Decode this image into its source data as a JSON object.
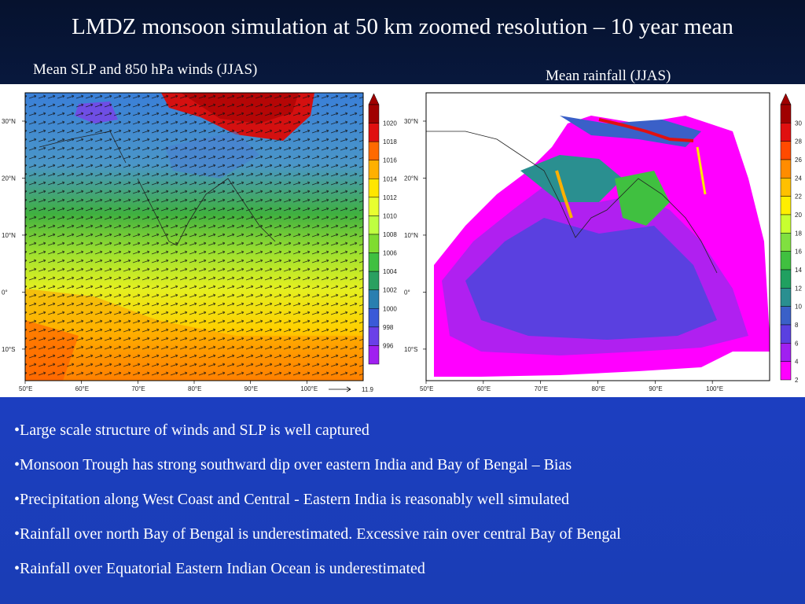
{
  "title": "LMDZ monsoon simulation at 50 km zoomed resolution – 10 year mean",
  "left_panel": {
    "subtitle": "Mean SLP and 850 hPa winds (JJAS)",
    "lat_labels": [
      "30°N",
      "20°N",
      "10°N",
      "0°",
      "10°S"
    ],
    "lon_labels": [
      "50°E",
      "60°E",
      "70°E",
      "80°E",
      "90°E",
      "100°E"
    ],
    "colorbar_labels": [
      "1020",
      "1018",
      "1016",
      "1014",
      "1012",
      "1010",
      "1008",
      "1006",
      "1004",
      "1002",
      "1000",
      "998",
      "996"
    ],
    "colorbar_colors": [
      "#a00000",
      "#e01010",
      "#ff6a00",
      "#ffb000",
      "#ffe600",
      "#e8ff30",
      "#bfff40",
      "#7fdc30",
      "#3fc040",
      "#2aa060",
      "#2a7fb0",
      "#3a5ad8",
      "#6a40e8",
      "#a020f0"
    ],
    "vector_ref": "11.9"
  },
  "right_panel": {
    "subtitle": "Mean rainfall (JJAS)",
    "lat_labels": [
      "30°N",
      "20°N",
      "10°N",
      "0°",
      "10°S"
    ],
    "lon_labels": [
      "50°E",
      "60°E",
      "70°E",
      "80°E",
      "90°E",
      "100°E"
    ],
    "colorbar_labels": [
      "30",
      "28",
      "26",
      "24",
      "22",
      "20",
      "18",
      "16",
      "14",
      "12",
      "10",
      "8",
      "6",
      "4",
      "2"
    ],
    "colorbar_colors": [
      "#a00000",
      "#e01010",
      "#ff4a00",
      "#ff8c00",
      "#ffc000",
      "#ffee00",
      "#c8ff30",
      "#80e040",
      "#40c040",
      "#20a060",
      "#2a8f90",
      "#3a60c8",
      "#5a40e0",
      "#a020f0",
      "#ff00ff"
    ]
  },
  "bullets": [
    "•Large scale structure of winds and SLP is well captured",
    "•Monsoon Trough has strong southward dip over eastern India and Bay of Bengal – Bias",
    "•Precipitation along West Coast and Central - Eastern India is reasonably well simulated",
    "•Rainfall over north Bay of Bengal is underestimated. Excessive rain over central Bay of Bengal",
    "•Rainfall over Equatorial Eastern Indian Ocean is underestimated"
  ]
}
